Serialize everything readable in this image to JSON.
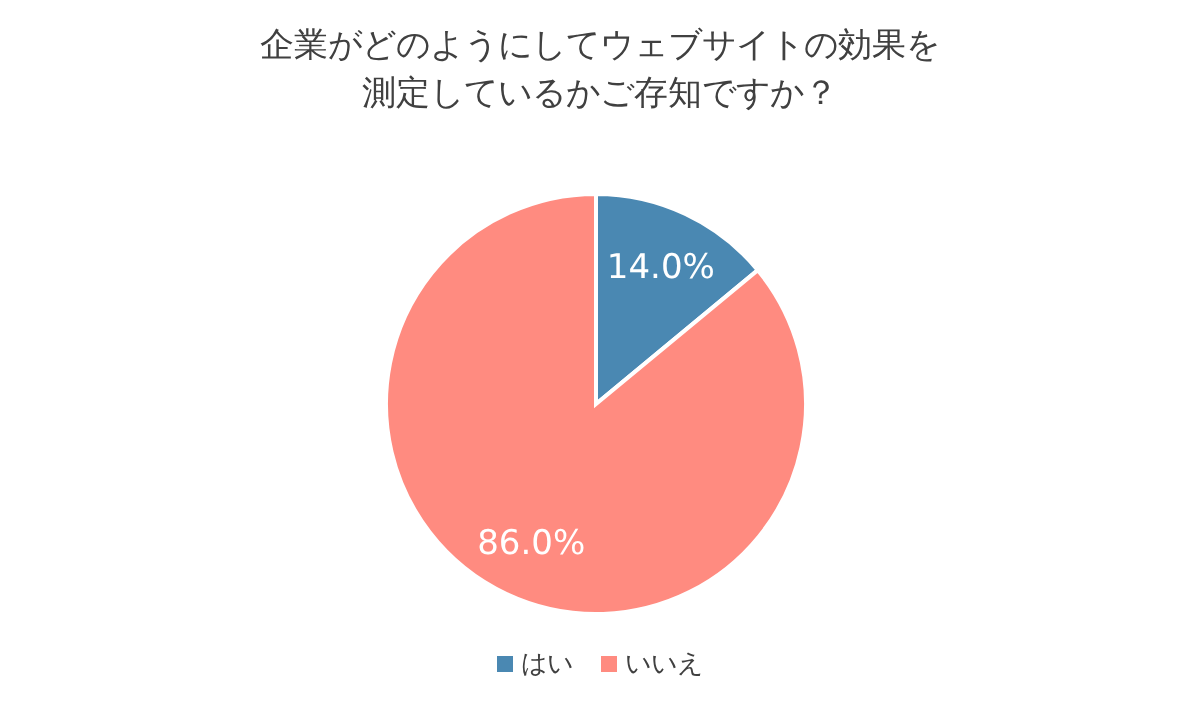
{
  "chart_data": {
    "type": "pie",
    "title": "企業がどのようにしてウェブサイトの効果を測定しているかご存知ですか？",
    "categories": [
      "はい",
      "いいえ"
    ],
    "values": [
      14.0,
      86.0
    ],
    "colors": [
      "#4a88b2",
      "#ff8b80"
    ],
    "value_labels": [
      "14.0%",
      "86.0%"
    ],
    "legend": "bottom"
  }
}
